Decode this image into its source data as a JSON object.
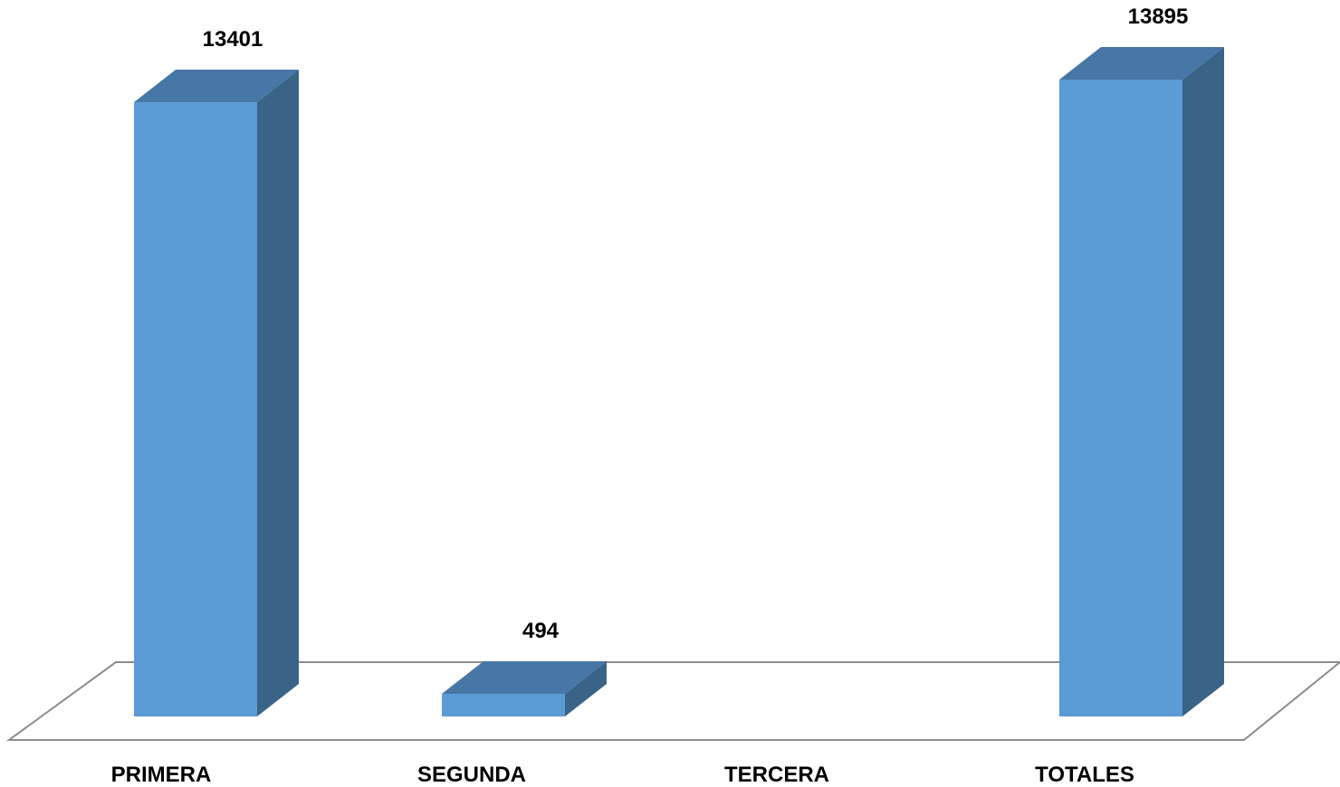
{
  "chart_data": {
    "type": "bar",
    "style": "3d-column",
    "title": "",
    "xlabel": "",
    "ylabel": "",
    "categories": [
      "PRIMERA",
      "SEGUNDA",
      "TERCERA",
      "TOTALES"
    ],
    "values": [
      13401,
      494,
      0,
      13895
    ],
    "data_labels": [
      "13401",
      "494",
      "",
      "13895"
    ],
    "ylim": [
      0,
      13895
    ],
    "grid": false,
    "legend": "none",
    "colors": {
      "bar_front": "#5B9BD5",
      "bar_top": "#4677A6",
      "bar_side": "#3A6388",
      "floor_line": "#8C8C8C"
    }
  }
}
